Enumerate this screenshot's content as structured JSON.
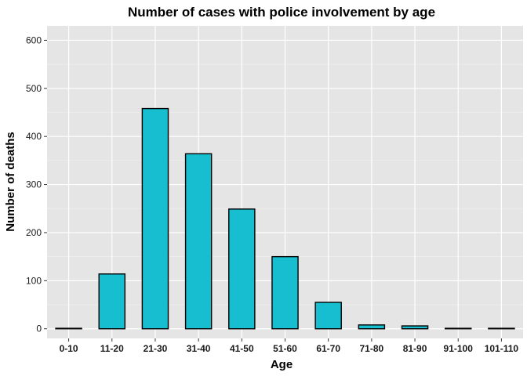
{
  "chart_data": {
    "type": "bar",
    "title": "Number of cases with police involvement by age",
    "xlabel": "Age",
    "ylabel": "Number of deaths",
    "categories": [
      "0-10",
      "11-20",
      "21-30",
      "31-40",
      "41-50",
      "51-60",
      "61-70",
      "71-80",
      "81-90",
      "91-100",
      "101-110"
    ],
    "values": [
      1,
      114,
      458,
      364,
      249,
      150,
      55,
      8,
      6,
      1,
      1
    ],
    "ylim": [
      -20,
      630
    ],
    "yticks": [
      0,
      100,
      200,
      300,
      400,
      500,
      600
    ],
    "grid": true,
    "legend": "none",
    "colors": {
      "bar_fill": "#17becf",
      "bar_stroke": "#000000",
      "panel_background": "#e5e5e5",
      "grid_major": "#ffffff",
      "grid_minor": "#f2f2f2"
    }
  }
}
